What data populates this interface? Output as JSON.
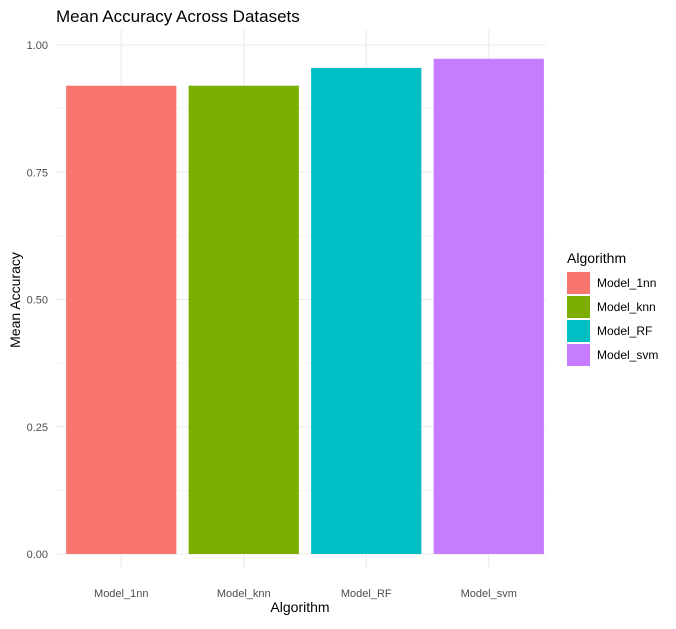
{
  "chart_data": {
    "type": "bar",
    "title": "Mean Accuracy Across Datasets",
    "xlabel": "Algorithm",
    "ylabel": "Mean Accuracy",
    "categories": [
      "Model_1nn",
      "Model_knn",
      "Model_RF",
      "Model_svm"
    ],
    "values": [
      0.92,
      0.92,
      0.955,
      0.973
    ],
    "colors": [
      "#F8766D",
      "#7CAE00",
      "#00BFC4",
      "#C77CFF"
    ],
    "ylim": [
      0,
      1.0
    ],
    "yticks": [
      0.0,
      0.25,
      0.5,
      0.75,
      1.0
    ],
    "ytick_labels": [
      "0.00",
      "0.25",
      "0.50",
      "0.75",
      "1.00"
    ],
    "grid": true,
    "legend": {
      "title": "Algorithm",
      "position": "right",
      "entries": [
        "Model_1nn",
        "Model_knn",
        "Model_RF",
        "Model_svm"
      ]
    }
  }
}
